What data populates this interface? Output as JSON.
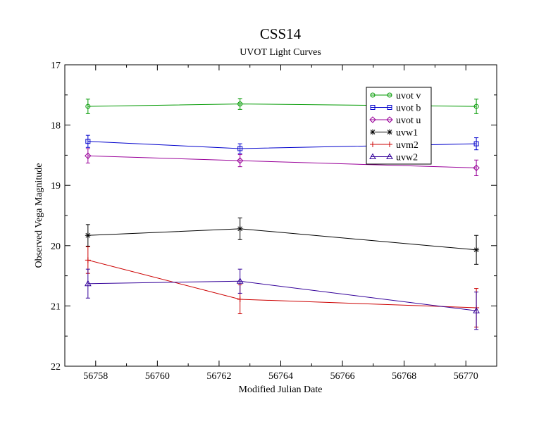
{
  "chart_data": {
    "type": "line",
    "title": "CSS14",
    "subtitle": "UVOT Light Curves",
    "xlabel": "Modified Julian Date",
    "ylabel": "Observed Vega Magnitude",
    "xlim": [
      56757.0,
      56771.0
    ],
    "ylim": [
      17,
      22
    ],
    "y_inverted": true,
    "x_major_ticks": [
      56758,
      56760,
      56762,
      56764,
      56766,
      56768,
      56770
    ],
    "x_tick_labels": [
      "56758",
      "56760",
      "56762",
      "56764",
      "56766",
      "56768",
      "56770"
    ],
    "y_major_ticks": [
      17,
      18,
      19,
      20,
      21,
      22
    ],
    "y_tick_labels": [
      "17",
      "18",
      "19",
      "20",
      "21",
      "22"
    ],
    "grid": false,
    "legend_position": "top-right",
    "series": [
      {
        "name": "uvot v",
        "color": "#009900",
        "marker": "circle",
        "x": [
          56757.75,
          56762.68,
          56770.34
        ],
        "y": [
          17.69,
          17.65,
          17.69
        ],
        "err": [
          0.12,
          0.09,
          0.12
        ]
      },
      {
        "name": "uvot b",
        "color": "#0000cc",
        "marker": "square",
        "x": [
          56757.75,
          56762.68,
          56770.34
        ],
        "y": [
          18.27,
          18.39,
          18.31
        ],
        "err": [
          0.1,
          0.08,
          0.1
        ]
      },
      {
        "name": "uvot u",
        "color": "#990099",
        "marker": "diamond",
        "x": [
          56757.75,
          56762.68,
          56770.34
        ],
        "y": [
          18.51,
          18.59,
          18.71
        ],
        "err": [
          0.12,
          0.1,
          0.13
        ]
      },
      {
        "name": "uvw1",
        "color": "#000000",
        "marker": "star",
        "x": [
          56757.75,
          56762.68,
          56770.34
        ],
        "y": [
          19.83,
          19.72,
          20.07
        ],
        "err": [
          0.18,
          0.18,
          0.24
        ]
      },
      {
        "name": "uvm2",
        "color": "#cc0000",
        "marker": "plus",
        "x": [
          56757.75,
          56762.68,
          56770.34
        ],
        "y": [
          20.24,
          20.89,
          21.03
        ],
        "err": [
          0.22,
          0.24,
          0.32
        ]
      },
      {
        "name": "uvw2",
        "color": "#330099",
        "marker": "triangle",
        "x": [
          56757.75,
          56762.68,
          56770.34
        ],
        "y": [
          20.63,
          20.59,
          21.08
        ],
        "err": [
          0.24,
          0.2,
          0.31
        ]
      }
    ]
  }
}
